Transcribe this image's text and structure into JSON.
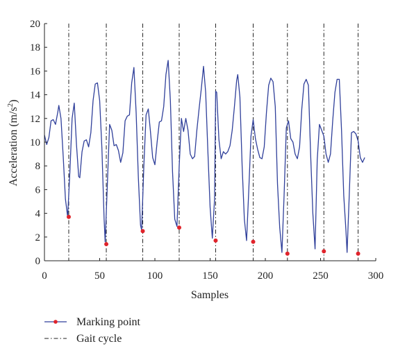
{
  "chart_data": {
    "type": "line",
    "xlabel": "Samples",
    "ylabel_main": "Acceleration (m/s",
    "ylabel_sup": "2",
    "ylabel_close": ")",
    "xlim": [
      0,
      300
    ],
    "ylim": [
      0,
      20
    ],
    "x_ticks": [
      0,
      50,
      100,
      150,
      200,
      250,
      300
    ],
    "y_ticks": [
      0,
      2,
      4,
      6,
      8,
      10,
      12,
      14,
      16,
      18,
      20
    ],
    "grid": false,
    "legend_position": "bottom-left",
    "colors": {
      "line": "#2f3f9a",
      "marker": "#e0232b",
      "cycle": "#222222"
    },
    "series": [
      {
        "name": "Acceleration",
        "points": [
          [
            0,
            10.6
          ],
          [
            2,
            9.8
          ],
          [
            4,
            10.4
          ],
          [
            6,
            11.8
          ],
          [
            8,
            11.9
          ],
          [
            10,
            11.5
          ],
          [
            12,
            12.5
          ],
          [
            13,
            13.1
          ],
          [
            15,
            12.0
          ],
          [
            17,
            8.8
          ],
          [
            19,
            5.2
          ],
          [
            21,
            3.7
          ],
          [
            23,
            7.5
          ],
          [
            25,
            12.0
          ],
          [
            27,
            13.3
          ],
          [
            29,
            9.8
          ],
          [
            31,
            7.1
          ],
          [
            32,
            7.0
          ],
          [
            34,
            9.2
          ],
          [
            36,
            10.1
          ],
          [
            38,
            10.2
          ],
          [
            40,
            9.6
          ],
          [
            42,
            10.8
          ],
          [
            44,
            13.5
          ],
          [
            46,
            14.9
          ],
          [
            48,
            15.0
          ],
          [
            50,
            13.5
          ],
          [
            52,
            9.5
          ],
          [
            54,
            3.5
          ],
          [
            55,
            1.6
          ],
          [
            57,
            6.5
          ],
          [
            59,
            11.5
          ],
          [
            61,
            11.0
          ],
          [
            63,
            9.7
          ],
          [
            65,
            9.8
          ],
          [
            67,
            9.3
          ],
          [
            69,
            8.3
          ],
          [
            71,
            9.1
          ],
          [
            73,
            11.8
          ],
          [
            75,
            12.2
          ],
          [
            77,
            12.3
          ],
          [
            79,
            15.0
          ],
          [
            81,
            16.3
          ],
          [
            83,
            12.5
          ],
          [
            85,
            7.0
          ],
          [
            87,
            3.0
          ],
          [
            88,
            2.6
          ],
          [
            90,
            8.0
          ],
          [
            92,
            12.3
          ],
          [
            94,
            12.8
          ],
          [
            96,
            10.9
          ],
          [
            98,
            8.7
          ],
          [
            100,
            8.1
          ],
          [
            102,
            10.0
          ],
          [
            104,
            11.7
          ],
          [
            106,
            11.8
          ],
          [
            108,
            13.0
          ],
          [
            110,
            15.7
          ],
          [
            112,
            16.9
          ],
          [
            114,
            13.5
          ],
          [
            116,
            7.5
          ],
          [
            118,
            3.5
          ],
          [
            120,
            2.9
          ],
          [
            122,
            8.0
          ],
          [
            124,
            12.0
          ],
          [
            126,
            10.9
          ],
          [
            128,
            12.0
          ],
          [
            130,
            11.0
          ],
          [
            132,
            9.0
          ],
          [
            134,
            8.6
          ],
          [
            136,
            8.8
          ],
          [
            138,
            11.0
          ],
          [
            140,
            12.8
          ],
          [
            142,
            14.5
          ],
          [
            144,
            16.4
          ],
          [
            146,
            14.2
          ],
          [
            148,
            9.2
          ],
          [
            150,
            4.5
          ],
          [
            152,
            1.9
          ],
          [
            154,
            5.2
          ],
          [
            155,
            14.3
          ],
          [
            156,
            14.2
          ],
          [
            158,
            10.2
          ],
          [
            160,
            8.6
          ],
          [
            162,
            9.2
          ],
          [
            164,
            9.0
          ],
          [
            166,
            9.2
          ],
          [
            168,
            9.7
          ],
          [
            170,
            11.0
          ],
          [
            172,
            13.0
          ],
          [
            174,
            15.2
          ],
          [
            175,
            15.7
          ],
          [
            177,
            13.8
          ],
          [
            179,
            8.0
          ],
          [
            181,
            3.5
          ],
          [
            183,
            1.7
          ],
          [
            185,
            6.0
          ],
          [
            187,
            10.5
          ],
          [
            189,
            11.9
          ],
          [
            191,
            10.3
          ],
          [
            193,
            9.4
          ],
          [
            195,
            8.7
          ],
          [
            197,
            8.6
          ],
          [
            199,
            9.6
          ],
          [
            201,
            12.5
          ],
          [
            203,
            14.8
          ],
          [
            205,
            15.4
          ],
          [
            207,
            15.1
          ],
          [
            209,
            13.0
          ],
          [
            211,
            6.5
          ],
          [
            213,
            2.8
          ],
          [
            215,
            0.7
          ],
          [
            217,
            5.5
          ],
          [
            219,
            11.2
          ],
          [
            221,
            11.8
          ],
          [
            223,
            10.3
          ],
          [
            225,
            10.0
          ],
          [
            227,
            9.0
          ],
          [
            229,
            8.6
          ],
          [
            231,
            9.6
          ],
          [
            233,
            12.8
          ],
          [
            235,
            14.9
          ],
          [
            237,
            15.3
          ],
          [
            239,
            14.8
          ],
          [
            241,
            9.0
          ],
          [
            243,
            4.0
          ],
          [
            245,
            1.0
          ],
          [
            247,
            8.5
          ],
          [
            249,
            11.5
          ],
          [
            251,
            11.0
          ],
          [
            253,
            10.5
          ],
          [
            255,
            9.0
          ],
          [
            257,
            8.3
          ],
          [
            259,
            9.0
          ],
          [
            261,
            11.8
          ],
          [
            263,
            14.2
          ],
          [
            265,
            15.3
          ],
          [
            267,
            15.3
          ],
          [
            269,
            11.0
          ],
          [
            271,
            5.5
          ],
          [
            273,
            2.5
          ],
          [
            274,
            0.7
          ],
          [
            276,
            5.5
          ],
          [
            278,
            10.8
          ],
          [
            280,
            10.9
          ],
          [
            282,
            10.7
          ],
          [
            284,
            10.1
          ],
          [
            286,
            8.7
          ],
          [
            288,
            8.3
          ],
          [
            290,
            8.7
          ]
        ]
      }
    ],
    "marking_points": [
      [
        22,
        3.7
      ],
      [
        56,
        1.4
      ],
      [
        89,
        2.5
      ],
      [
        122,
        2.8
      ],
      [
        155,
        1.7
      ],
      [
        189,
        1.6
      ],
      [
        220,
        0.6
      ],
      [
        253,
        0.8
      ],
      [
        284,
        0.6
      ]
    ],
    "gait_cycle_x": [
      22,
      56,
      89,
      122,
      155,
      189,
      220,
      253,
      284
    ]
  },
  "legend": {
    "items": [
      {
        "label": "Marking point"
      },
      {
        "label": "Gait cycle"
      }
    ]
  }
}
